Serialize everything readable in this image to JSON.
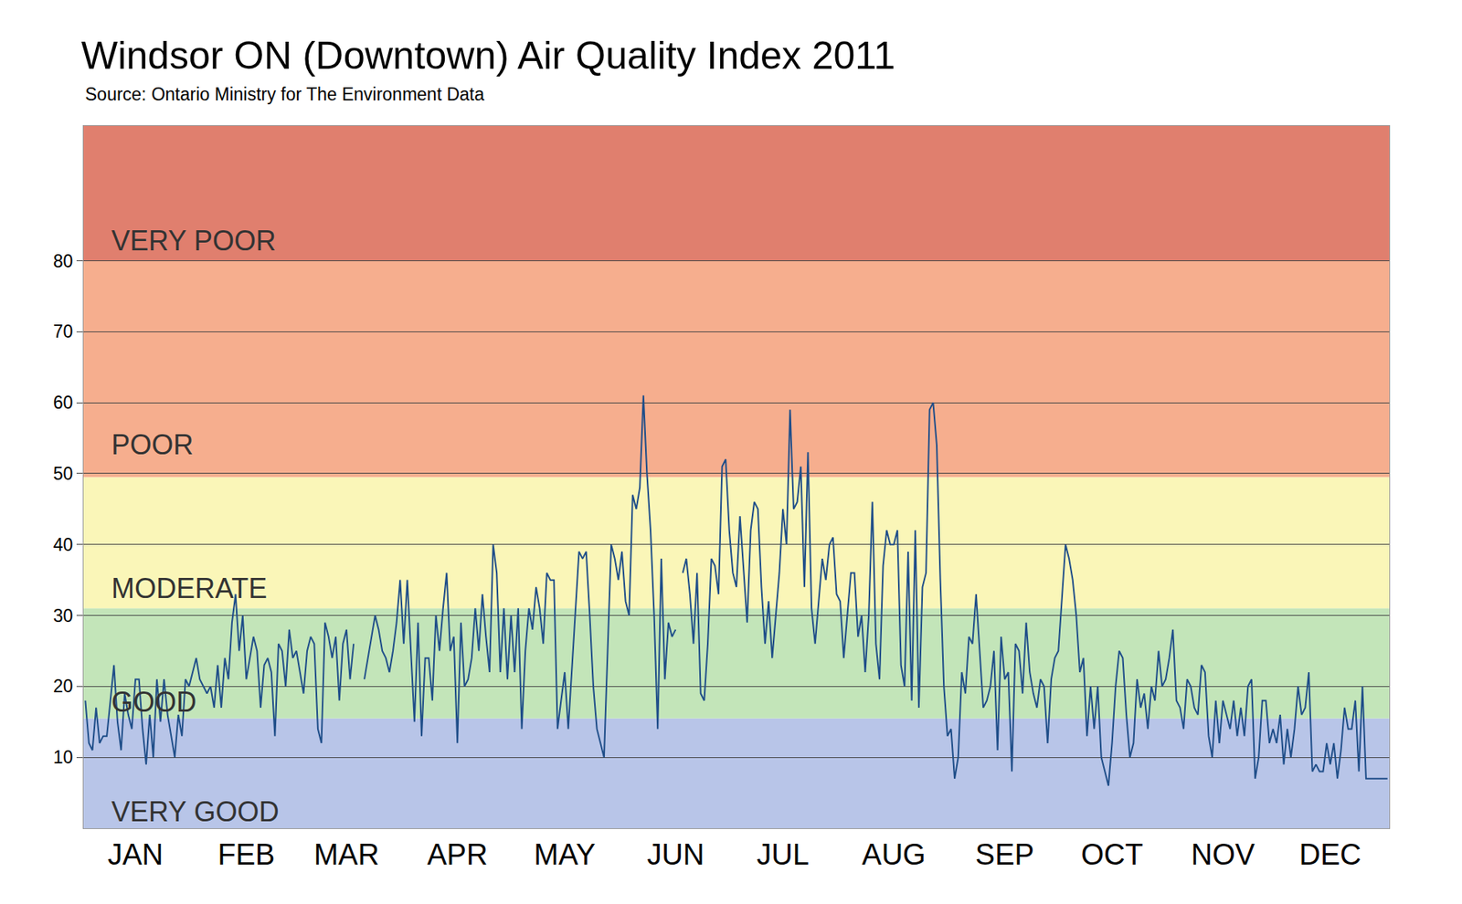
{
  "chart_data": {
    "type": "line",
    "title": "Windsor ON (Downtown) Air Quality Index 2011",
    "subtitle": "Source: Ontario Ministry for The Environment Data",
    "color": "#1f4e89",
    "ylim": [
      0,
      99
    ],
    "yticks": [
      10,
      20,
      30,
      40,
      50,
      60,
      70,
      80
    ],
    "grid": true,
    "bands": [
      {
        "label": "VERY GOOD",
        "from": 0,
        "to": 15.5,
        "color": "#b8c5e8"
      },
      {
        "label": "GOOD",
        "from": 15.5,
        "to": 31,
        "color": "#c3e5b9"
      },
      {
        "label": "MODERATE",
        "from": 31,
        "to": 49.5,
        "color": "#faf6b8"
      },
      {
        "label": "POOR",
        "from": 49.5,
        "to": 80,
        "color": "#f6ae8e"
      },
      {
        "label": "VERY POOR",
        "from": 80,
        "to": 99,
        "color": "#e07f6e"
      }
    ],
    "categories": [
      null,
      null,
      null,
      null,
      null,
      null,
      null,
      null,
      null,
      null,
      null,
      null,
      null,
      null,
      "JAN",
      null,
      null,
      null,
      null,
      null,
      null,
      null,
      null,
      null,
      null,
      null,
      null,
      null,
      null,
      null,
      null,
      null,
      null,
      null,
      null,
      null,
      null,
      null,
      null,
      null,
      null,
      null,
      null,
      null,
      null,
      "FEB",
      null,
      null,
      null,
      null,
      null,
      null,
      null,
      null,
      null,
      null,
      null,
      null,
      null,
      null,
      null,
      null,
      null,
      null,
      null,
      null,
      null,
      null,
      null,
      null,
      null,
      null,
      null,
      "MAR",
      null,
      null,
      null,
      null,
      null,
      null,
      null,
      null,
      null,
      null,
      null,
      null,
      null,
      null,
      null,
      null,
      null,
      null,
      null,
      null,
      null,
      null,
      null,
      null,
      null,
      null,
      null,
      null,
      null,
      null,
      "APR",
      null,
      null,
      null,
      null,
      null,
      null,
      null,
      null,
      null,
      null,
      null,
      null,
      null,
      null,
      null,
      null,
      null,
      null,
      null,
      null,
      null,
      null,
      null,
      null,
      null,
      null,
      null,
      null,
      null,
      "MAY",
      null,
      null,
      null,
      null,
      null,
      null,
      null,
      null,
      null,
      null,
      null,
      null,
      null,
      null,
      null,
      null,
      null,
      null,
      null,
      null,
      null,
      null,
      null,
      null,
      null,
      null,
      null,
      null,
      null,
      null,
      "JUN",
      null,
      null,
      null,
      null,
      null,
      null,
      null,
      null,
      null,
      null,
      null,
      null,
      null,
      null,
      null,
      null,
      null,
      null,
      null,
      null,
      null,
      null,
      null,
      null,
      null,
      null,
      null,
      null,
      null,
      "JUL",
      null,
      null,
      null,
      null,
      null,
      null,
      null,
      null,
      null,
      null,
      null,
      null,
      null,
      null,
      null,
      null,
      null,
      null,
      null,
      null,
      null,
      null,
      null,
      null,
      null,
      null,
      null,
      null,
      null,
      null,
      "AUG",
      null,
      null,
      null,
      null,
      null,
      null,
      null,
      null,
      null,
      null,
      null,
      null,
      null,
      null,
      null,
      null,
      null,
      null,
      null,
      null,
      null,
      null,
      null,
      null,
      null,
      null,
      null,
      null,
      null,
      null,
      "SEP",
      null,
      null,
      null,
      null,
      null,
      null,
      null,
      null,
      null,
      null,
      null,
      null,
      null,
      null,
      null,
      null,
      null,
      null,
      null,
      null,
      null,
      null,
      null,
      null,
      null,
      null,
      null,
      null,
      null,
      "OCT",
      null,
      null,
      null,
      null,
      null,
      null,
      null,
      null,
      null,
      null,
      null,
      null,
      null,
      null,
      null,
      null,
      null,
      null,
      null,
      null,
      null,
      null,
      null,
      null,
      null,
      null,
      null,
      null,
      null,
      null,
      "NOV",
      null,
      null,
      null,
      null,
      null,
      null,
      null,
      null,
      null,
      null,
      null,
      null,
      null,
      null,
      null,
      null,
      null,
      null,
      null,
      null,
      null,
      null,
      null,
      null,
      null,
      null,
      null,
      null,
      null,
      "DEC",
      null,
      null,
      null,
      null,
      null,
      null,
      null,
      null,
      null,
      null,
      null,
      null,
      null,
      null,
      null,
      null
    ],
    "values": [
      18,
      12,
      11,
      17,
      12,
      13,
      13,
      18,
      23,
      15,
      11,
      19,
      16,
      14,
      21,
      21,
      14,
      9,
      16,
      10,
      21,
      15,
      21,
      16,
      13,
      10,
      16,
      13,
      21,
      20,
      22,
      24,
      21,
      20,
      19,
      20,
      17,
      23,
      17,
      24,
      21,
      29,
      33,
      25,
      30,
      21,
      24,
      27,
      25,
      17,
      23,
      24,
      22,
      13,
      26,
      25,
      20,
      28,
      24,
      25,
      22,
      19,
      25,
      27,
      26,
      14,
      12,
      29,
      27,
      24,
      27,
      18,
      26,
      28,
      21,
      26,
      null,
      null,
      21,
      24,
      27,
      30,
      28,
      25,
      24,
      22,
      25,
      29,
      35,
      26,
      35,
      25,
      15,
      29,
      13,
      24,
      24,
      18,
      30,
      25,
      31,
      36,
      25,
      27,
      12,
      29,
      20,
      21,
      24,
      31,
      25,
      33,
      27,
      22,
      40,
      36,
      22,
      31,
      21,
      30,
      22,
      31,
      14,
      25,
      31,
      28,
      34,
      31,
      26,
      36,
      35,
      35,
      14,
      18,
      22,
      14,
      22,
      30,
      39,
      38,
      39,
      30,
      20,
      14,
      12,
      10,
      25,
      40,
      38,
      35,
      39,
      32,
      30,
      47,
      45,
      48,
      61,
      50,
      42,
      30,
      14,
      38,
      21,
      29,
      27,
      28,
      null,
      36,
      38,
      33,
      26,
      36,
      19,
      18,
      26,
      38,
      37,
      33,
      51,
      52,
      42,
      36,
      34,
      44,
      37,
      29,
      42,
      46,
      45,
      34,
      26,
      32,
      24,
      30,
      36,
      45,
      40,
      59,
      45,
      46,
      51,
      34,
      53,
      31,
      26,
      32,
      38,
      35,
      40,
      41,
      33,
      32,
      24,
      30,
      36,
      36,
      27,
      30,
      22,
      30,
      46,
      26,
      21,
      37,
      42,
      40,
      40,
      42,
      23,
      20,
      39,
      18,
      42,
      17,
      34,
      36,
      59,
      60,
      54,
      35,
      20,
      13,
      14,
      7,
      10,
      22,
      19,
      27,
      26,
      33,
      25,
      17,
      18,
      20,
      25,
      11,
      27,
      21,
      22,
      8,
      26,
      25,
      19,
      29,
      22,
      19,
      17,
      21,
      20,
      12,
      21,
      24,
      25,
      32,
      40,
      38,
      35,
      30,
      22,
      24,
      13,
      20,
      14,
      20,
      10,
      8,
      6,
      12,
      20,
      25,
      24,
      16,
      10,
      12,
      21,
      17,
      19,
      14,
      20,
      18,
      25,
      20,
      21,
      24,
      28,
      18,
      17,
      14,
      21,
      20,
      17,
      16,
      23,
      22,
      13,
      10,
      18,
      12,
      18,
      16,
      14,
      18,
      13,
      17,
      13,
      20,
      21,
      7,
      10,
      18,
      18,
      12,
      14,
      12,
      16,
      9,
      14,
      10,
      14,
      20,
      16,
      17,
      22,
      8,
      9,
      8,
      8,
      12,
      9,
      12,
      7,
      11,
      17,
      14,
      14,
      18,
      8,
      20,
      7,
      7,
      7,
      7,
      7,
      7,
      7
    ]
  }
}
